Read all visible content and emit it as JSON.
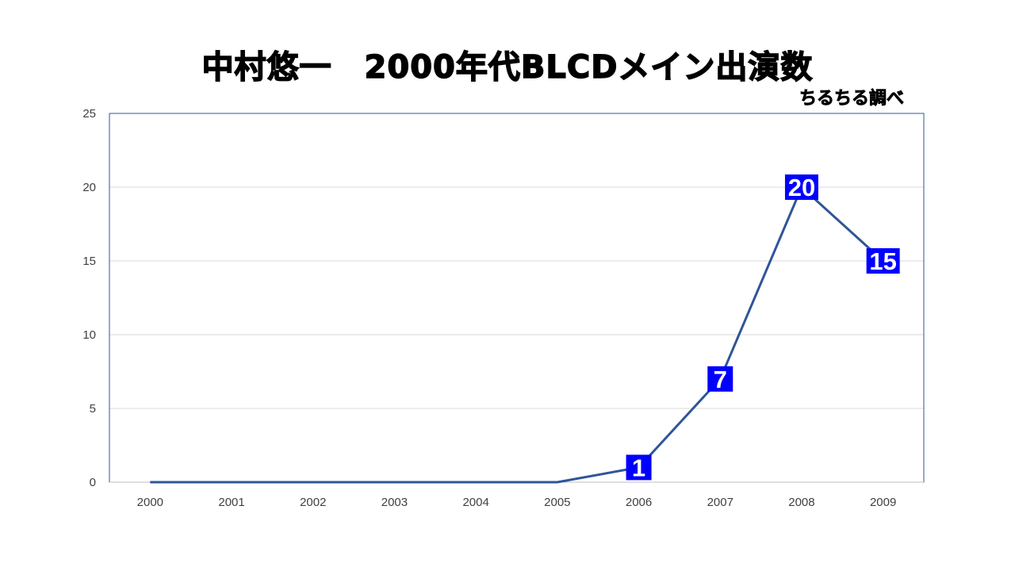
{
  "chart_data": {
    "type": "line",
    "title": "中村悠一　2000年代BLCDメイン出演数",
    "subtitle": "ちるちる調べ",
    "xlabel": "",
    "ylabel": "",
    "categories": [
      "2000",
      "2001",
      "2002",
      "2003",
      "2004",
      "2005",
      "2006",
      "2007",
      "2008",
      "2009"
    ],
    "series": [
      {
        "name": "メイン出演数",
        "values": [
          0,
          0,
          0,
          0,
          0,
          0,
          1,
          7,
          20,
          15
        ],
        "color": "#2F5597"
      }
    ],
    "data_labels": [
      {
        "index": 6,
        "text": "1"
      },
      {
        "index": 7,
        "text": "7"
      },
      {
        "index": 8,
        "text": "20"
      },
      {
        "index": 9,
        "text": "15"
      }
    ],
    "label_bg": "#0000FF",
    "ylim": [
      0,
      25
    ],
    "yticks": [
      "0",
      "5",
      "10",
      "15",
      "20",
      "25"
    ],
    "grid": true,
    "legend": "none"
  }
}
